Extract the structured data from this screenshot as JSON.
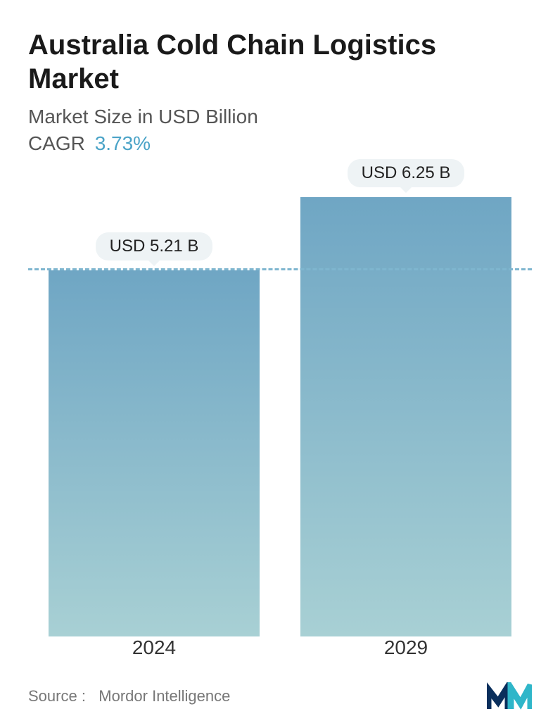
{
  "title": "Australia Cold Chain Logistics Market",
  "subtitle": "Market Size in USD Billion",
  "cagr": {
    "label": "CAGR",
    "value": "3.73%",
    "value_color": "#4aa3c7"
  },
  "chart": {
    "type": "bar",
    "categories": [
      "2024",
      "2029"
    ],
    "values": [
      5.21,
      6.25
    ],
    "value_labels": [
      "USD 5.21 B",
      "USD 6.25 B"
    ],
    "ylim": [
      0,
      6.25
    ],
    "reference_line_value": 5.21,
    "bar_gradient_top": "#6fa6c4",
    "bar_gradient_bottom": "#a8d0d4",
    "dash_line_color": "#7fb6cf",
    "badge_bg": "#eef3f5",
    "badge_text_color": "#222222",
    "title_fontsize": 40,
    "subtitle_fontsize": 28,
    "xlabel_fontsize": 28,
    "valuelabel_fontsize": 24,
    "background_color": "#ffffff"
  },
  "source": {
    "prefix": "Source :",
    "name": "Mordor Intelligence"
  },
  "logo": {
    "name": "mordor-logo",
    "colors": [
      "#0a2f5c",
      "#2fb6c9"
    ]
  }
}
